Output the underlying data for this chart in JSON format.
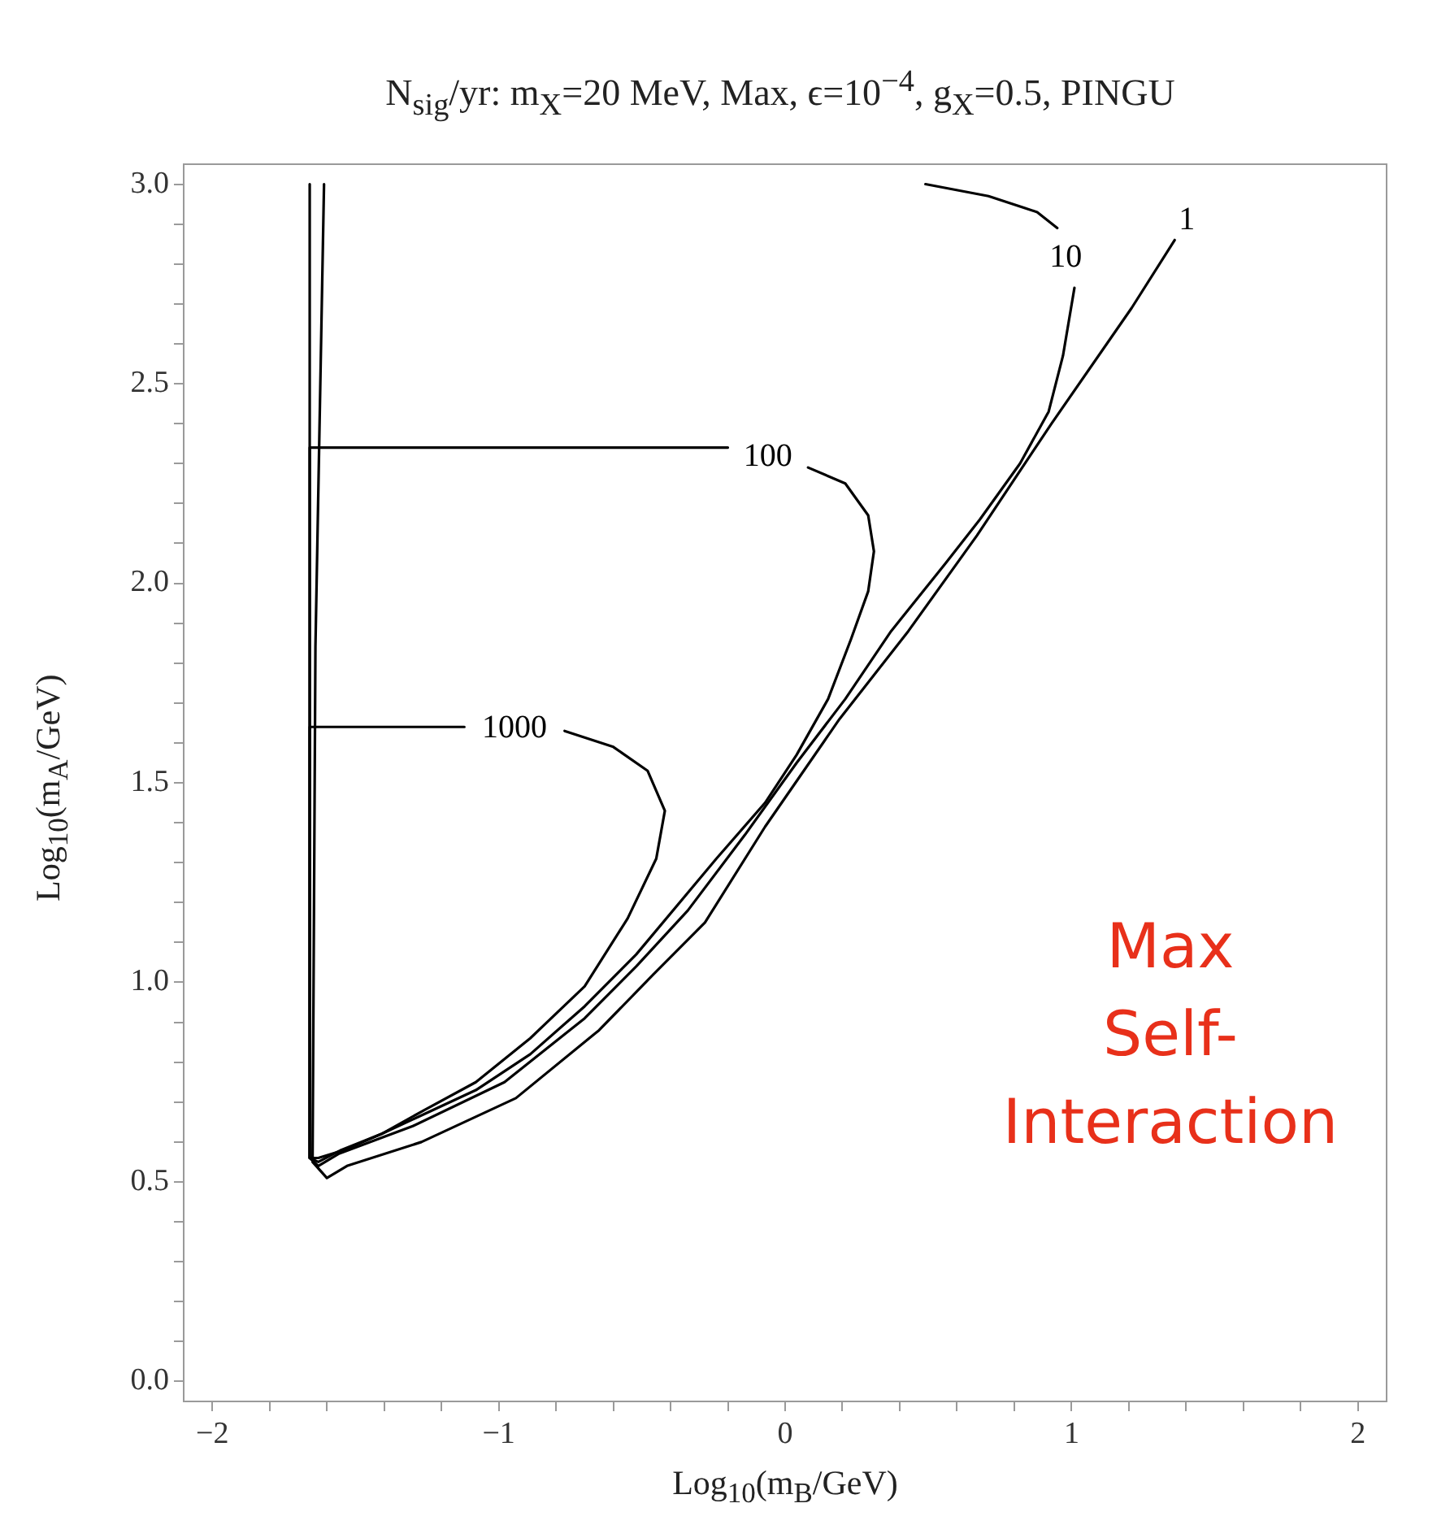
{
  "chart_data": {
    "type": "line",
    "title": "N$_{sig}$/yr: m$_{X}$=20 MeV, Max, ϵ=10$^{−4}$, g$_{X}$=0.5, PINGU",
    "xlabel": "Log$_{10}$(m$_{B}$/GeV)",
    "ylabel": "Log$_{10}$(m$_{A}$/GeV)",
    "xlim": [
      -2.1,
      2.1
    ],
    "ylim": [
      -0.05,
      3.05
    ],
    "xticks": [
      {
        "value": -2,
        "label": "−2"
      },
      {
        "value": -1.8,
        "label": null
      },
      {
        "value": -1.6,
        "label": null
      },
      {
        "value": -1.4,
        "label": null
      },
      {
        "value": -1.2,
        "label": null
      },
      {
        "value": -1,
        "label": "−1"
      },
      {
        "value": -0.8,
        "label": null
      },
      {
        "value": -0.6,
        "label": null
      },
      {
        "value": -0.4,
        "label": null
      },
      {
        "value": -0.2,
        "label": null
      },
      0,
      {
        "value": 0.2,
        "label": null
      },
      {
        "value": 0.4,
        "label": null
      },
      {
        "value": 0.6,
        "label": null
      },
      {
        "value": 0.8,
        "label": null
      },
      1,
      {
        "value": 1.2,
        "label": null
      },
      {
        "value": 1.4,
        "label": null
      },
      {
        "value": 1.6,
        "label": null
      },
      {
        "value": 1.8,
        "label": null
      },
      2
    ],
    "yticks": [
      {
        "value": 0,
        "label": "0.0"
      },
      {
        "value": 0.1,
        "label": null
      },
      {
        "value": 0.2,
        "label": null
      },
      {
        "value": 0.3,
        "label": null
      },
      {
        "value": 0.4,
        "label": null
      },
      0.5,
      {
        "value": 0.6,
        "label": null
      },
      {
        "value": 0.7,
        "label": null
      },
      {
        "value": 0.8,
        "label": null
      },
      {
        "value": 0.9,
        "label": null
      },
      {
        "value": 1,
        "label": "1.0"
      },
      {
        "value": 1.1,
        "label": null
      },
      {
        "value": 1.2,
        "label": null
      },
      {
        "value": 1.3,
        "label": null
      },
      {
        "value": 1.4,
        "label": null
      },
      1.5,
      {
        "value": 1.6,
        "label": null
      },
      {
        "value": 1.7,
        "label": null
      },
      {
        "value": 1.8,
        "label": null
      },
      {
        "value": 1.9,
        "label": null
      },
      {
        "value": 2,
        "label": "2.0"
      },
      {
        "value": 2.1,
        "label": null
      },
      {
        "value": 2.2,
        "label": null
      },
      {
        "value": 2.3,
        "label": null
      },
      {
        "value": 2.4,
        "label": null
      },
      2.5,
      {
        "value": 2.6,
        "label": null
      },
      {
        "value": 2.7,
        "label": null
      },
      {
        "value": 2.8,
        "label": null
      },
      {
        "value": 2.9,
        "label": null
      },
      {
        "value": 3,
        "label": "3.0"
      }
    ],
    "grid": false,
    "legend": false,
    "marker": "none",
    "line_style": "solid",
    "series": [
      {
        "name": "1000",
        "color": "#000000",
        "x": [
          -1.66,
          -1.12,
          -0.94,
          -0.77,
          -0.6,
          -0.48,
          -0.42,
          -0.45,
          -0.55,
          -0.7,
          -0.89,
          -1.08,
          -1.26,
          -1.41,
          -1.55,
          -1.63,
          -1.66,
          -1.66
        ],
        "values": [
          1.64,
          1.64,
          null,
          1.63,
          1.59,
          1.53,
          1.43,
          1.31,
          1.16,
          0.99,
          0.86,
          0.75,
          0.68,
          0.62,
          0.58,
          0.55,
          0.56,
          1.64
        ]
      },
      {
        "name": "100",
        "color": "#000000",
        "x": [
          -1.66,
          -0.2,
          -0.07,
          0.08,
          0.21,
          0.29,
          0.31,
          0.29,
          0.23,
          0.15,
          0.04,
          -0.07,
          -0.24,
          -0.52,
          -0.7,
          -0.89,
          -1.08,
          -1.26,
          -1.41,
          -1.54,
          -1.63,
          -1.66,
          -1.66
        ],
        "values": [
          2.34,
          2.34,
          null,
          2.29,
          2.25,
          2.17,
          2.08,
          1.98,
          1.86,
          1.71,
          1.57,
          1.45,
          1.31,
          1.07,
          0.94,
          0.82,
          0.73,
          0.67,
          0.62,
          0.58,
          0.56,
          0.56,
          2.34
        ]
      },
      {
        "name": "10",
        "color": "#000000",
        "x": [
          0.49,
          0.71,
          0.88,
          0.95,
          0.98,
          1.01,
          0.97,
          0.92,
          0.82,
          0.68,
          0.56,
          0.37,
          0.21,
          0.04,
          -0.14,
          -0.34,
          -0.52,
          -0.7,
          -0.98,
          -1.3,
          -1.56,
          -1.63,
          -1.66,
          -1.66
        ],
        "values": [
          3.0,
          2.97,
          2.93,
          2.89,
          null,
          2.74,
          2.57,
          2.43,
          2.3,
          2.16,
          2.05,
          1.88,
          1.71,
          1.55,
          1.37,
          1.18,
          1.04,
          0.91,
          0.75,
          0.64,
          0.57,
          0.54,
          0.56,
          3.0
        ]
      },
      {
        "name": "1",
        "color": "#000000",
        "x": [
          1.36,
          1.21,
          0.93,
          0.67,
          0.43,
          0.19,
          -0.07,
          -0.28,
          -0.46,
          -0.65,
          -0.94,
          -1.27,
          -1.53,
          -1.6,
          -1.65,
          -1.64,
          -1.61
        ],
        "values": [
          2.86,
          2.69,
          2.4,
          2.12,
          1.88,
          1.66,
          1.39,
          1.15,
          1.02,
          0.88,
          0.71,
          0.6,
          0.54,
          0.51,
          0.55,
          1.84,
          3.0
        ]
      }
    ],
    "annotations": [
      "Max Self-Interaction"
    ]
  }
}
